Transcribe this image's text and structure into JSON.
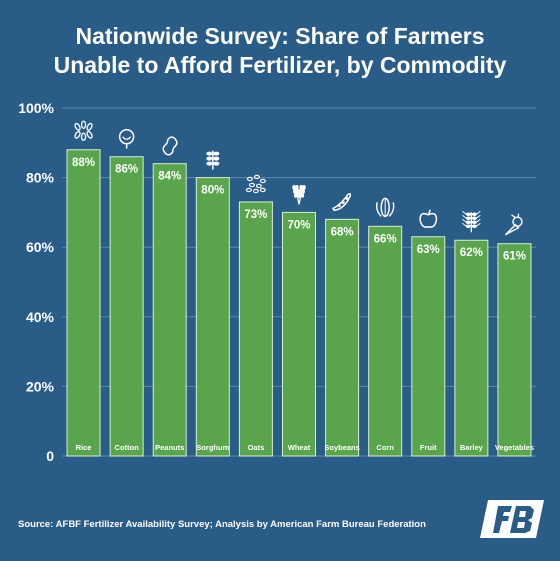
{
  "title_line1": "Nationwide Survey: Share of Farmers",
  "title_line2": "Unable to Afford Fertilizer, by Commodity",
  "source": "Source: AFBF Fertilizer Availability Survey; Analysis by American Farm Bureau Federation",
  "colors": {
    "background": "#2a5c88",
    "bar": "#5aa54c",
    "bar_border": "#d9eed4",
    "grid": "#5c87ad",
    "text": "#ffffff"
  },
  "chart_data": {
    "type": "bar",
    "categories": [
      "Rice",
      "Cotton",
      "Peanuts",
      "Sorghum",
      "Oats",
      "Wheat",
      "Soybeans",
      "Corn",
      "Fruit",
      "Barley",
      "Vegetables"
    ],
    "values": [
      88,
      86,
      84,
      80,
      73,
      70,
      68,
      66,
      63,
      62,
      61
    ],
    "data_labels": [
      "88%",
      "86%",
      "84%",
      "80%",
      "73%",
      "70%",
      "68%",
      "66%",
      "63%",
      "62%",
      "61%"
    ],
    "icons": [
      "rice-icon",
      "cotton-icon",
      "peanut-icon",
      "sorghum-icon",
      "oats-icon",
      "wheat-icon",
      "soybean-icon",
      "corn-icon",
      "apple-icon",
      "barley-icon",
      "vegetables-icon"
    ],
    "ylim": [
      0,
      100
    ],
    "yticks": [
      0,
      20,
      40,
      60,
      80,
      100
    ],
    "ytick_labels": [
      "0",
      "20%",
      "40%",
      "60%",
      "80%",
      "100%"
    ],
    "grid": true
  }
}
